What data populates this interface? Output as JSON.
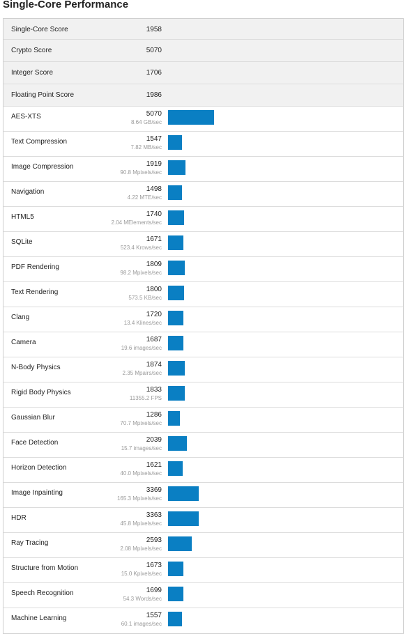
{
  "heading": "Single-Core Performance",
  "accent_color": "#0a7fc3",
  "summary": [
    {
      "label": "Single-Core Score",
      "score": "1958"
    },
    {
      "label": "Crypto Score",
      "score": "5070"
    },
    {
      "label": "Integer Score",
      "score": "1706"
    },
    {
      "label": "Floating Point Score",
      "score": "1986"
    }
  ],
  "tests": [
    {
      "label": "AES-XTS",
      "score": "5070",
      "rate": "8.64 GB/sec",
      "bar": 5070
    },
    {
      "label": "Text Compression",
      "score": "1547",
      "rate": "7.82 MB/sec",
      "bar": 1547
    },
    {
      "label": "Image Compression",
      "score": "1919",
      "rate": "90.8 Mpixels/sec",
      "bar": 1919
    },
    {
      "label": "Navigation",
      "score": "1498",
      "rate": "4.22 MTE/sec",
      "bar": 1498
    },
    {
      "label": "HTML5",
      "score": "1740",
      "rate": "2.04 MElements/sec",
      "bar": 1740
    },
    {
      "label": "SQLite",
      "score": "1671",
      "rate": "523.4 Krows/sec",
      "bar": 1671
    },
    {
      "label": "PDF Rendering",
      "score": "1809",
      "rate": "98.2 Mpixels/sec",
      "bar": 1809
    },
    {
      "label": "Text Rendering",
      "score": "1800",
      "rate": "573.5 KB/sec",
      "bar": 1800
    },
    {
      "label": "Clang",
      "score": "1720",
      "rate": "13.4 Klines/sec",
      "bar": 1720
    },
    {
      "label": "Camera",
      "score": "1687",
      "rate": "19.6 images/sec",
      "bar": 1687
    },
    {
      "label": "N-Body Physics",
      "score": "1874",
      "rate": "2.35 Mpairs/sec",
      "bar": 1874
    },
    {
      "label": "Rigid Body Physics",
      "score": "1833",
      "rate": "11355.2 FPS",
      "bar": 1833
    },
    {
      "label": "Gaussian Blur",
      "score": "1286",
      "rate": "70.7 Mpixels/sec",
      "bar": 1286
    },
    {
      "label": "Face Detection",
      "score": "2039",
      "rate": "15.7 images/sec",
      "bar": 2039
    },
    {
      "label": "Horizon Detection",
      "score": "1621",
      "rate": "40.0 Mpixels/sec",
      "bar": 1621
    },
    {
      "label": "Image Inpainting",
      "score": "3369",
      "rate": "165.3 Mpixels/sec",
      "bar": 3369
    },
    {
      "label": "HDR",
      "score": "3363",
      "rate": "45.8 Mpixels/sec",
      "bar": 3363
    },
    {
      "label": "Ray Tracing",
      "score": "2593",
      "rate": "2.08 Mpixels/sec",
      "bar": 2593
    },
    {
      "label": "Structure from Motion",
      "score": "1673",
      "rate": "15.0 Kpixels/sec",
      "bar": 1673
    },
    {
      "label": "Speech Recognition",
      "score": "1699",
      "rate": "54.3 Words/sec",
      "bar": 1699
    },
    {
      "label": "Machine Learning",
      "score": "1557",
      "rate": "60.1 images/sec",
      "bar": 1557
    }
  ]
}
